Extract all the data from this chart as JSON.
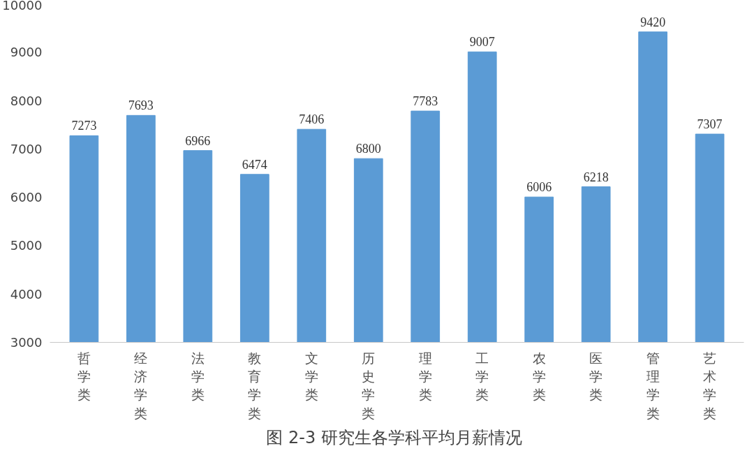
{
  "chart_data": {
    "type": "bar",
    "title": "图 2-3  研究生各学科平均月薪情况",
    "categories": [
      "哲学类",
      "经济学类",
      "法学类",
      "教育学类",
      "文学类",
      "历史学类",
      "理学类",
      "工学类",
      "农学类",
      "医学类",
      "管理学类",
      "艺术学类"
    ],
    "values": [
      7273,
      7693,
      6966,
      6474,
      7406,
      6800,
      7783,
      9007,
      6006,
      6218,
      9420,
      7307
    ],
    "color": "#5b9bd5",
    "ylim": [
      3000,
      10000
    ],
    "yticks": [
      3000,
      4000,
      5000,
      6000,
      7000,
      8000,
      9000,
      10000
    ],
    "grid": false,
    "data_labels": true
  }
}
